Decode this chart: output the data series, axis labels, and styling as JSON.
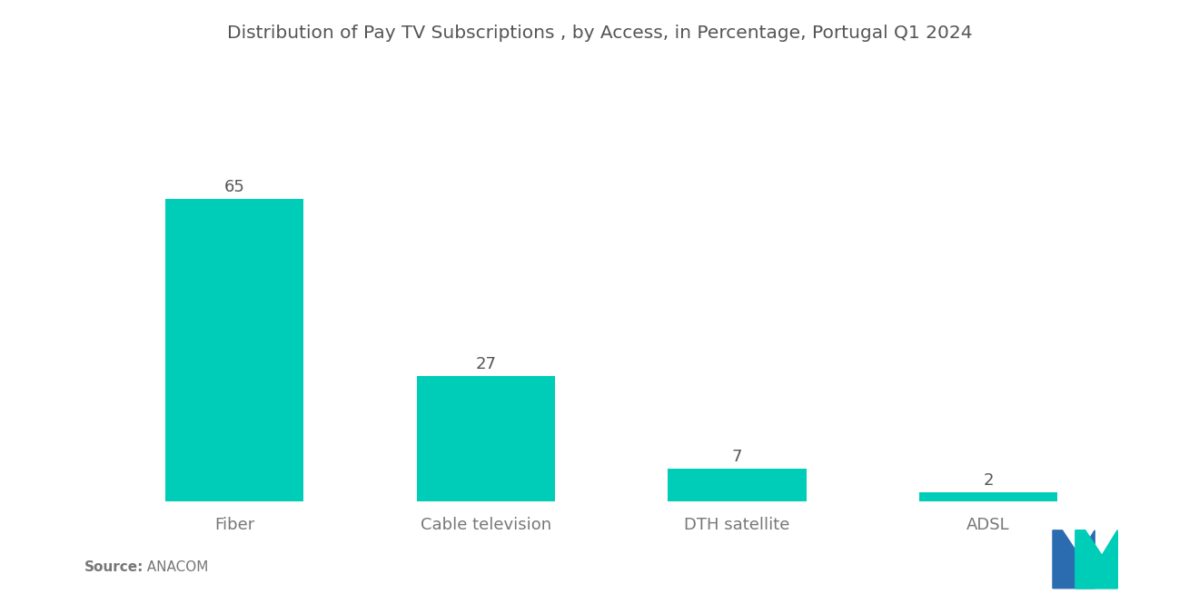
{
  "title": "Distribution of Pay TV Subscriptions , by Access, in Percentage, Portugal Q1 2024",
  "categories": [
    "Fiber",
    "Cable television",
    "DTH satellite",
    "ADSL"
  ],
  "values": [
    65,
    27,
    7,
    2
  ],
  "bar_color": "#00CDB8",
  "background_color": "#ffffff",
  "title_fontsize": 14.5,
  "label_fontsize": 13,
  "value_fontsize": 13,
  "source_label": "Source:",
  "source_value": "  ANACOM",
  "ylim": [
    0,
    78
  ],
  "bar_width": 0.55,
  "logo_blue": "#2B6CB0",
  "logo_teal": "#00CDB8",
  "title_color": "#555555",
  "label_color": "#777777",
  "value_color": "#555555"
}
